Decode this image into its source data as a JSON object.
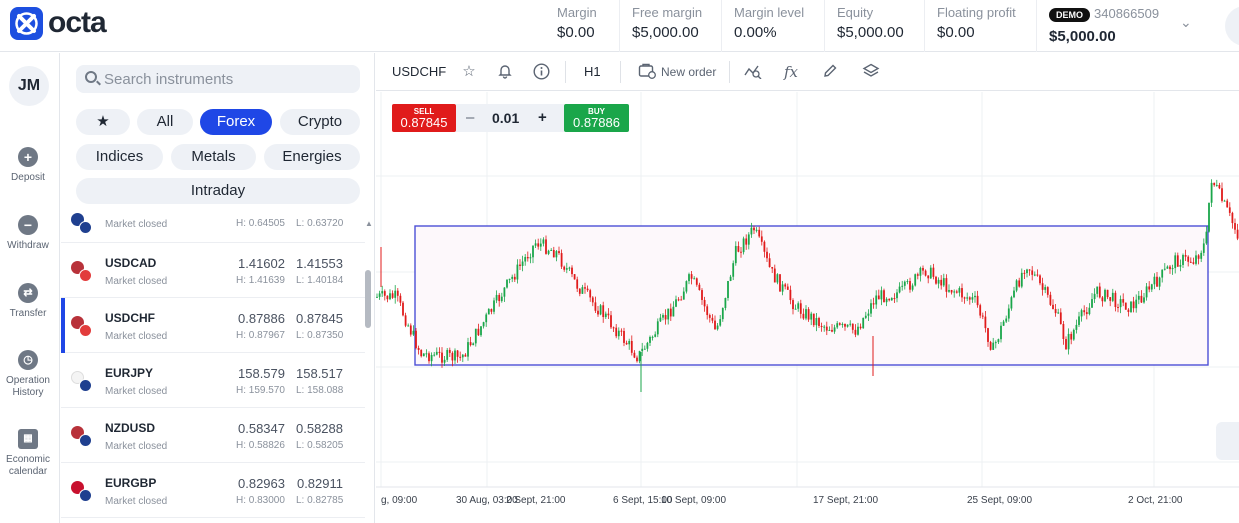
{
  "brand": {
    "name": "octa"
  },
  "header": {
    "stats": [
      {
        "label": "Margin",
        "value": "$0.00"
      },
      {
        "label": "Free margin",
        "value": "$5,000.00"
      },
      {
        "label": "Margin level",
        "value": "0.00%"
      },
      {
        "label": "Equity",
        "value": "$5,000.00"
      },
      {
        "label": "Floating profit",
        "value": "$0.00"
      }
    ],
    "account": {
      "badge": "DEMO",
      "id": "340866509",
      "balance": "$5,000.00"
    }
  },
  "nav": {
    "avatar": "JM",
    "items": [
      {
        "label": "Deposit",
        "icon": "plus-circle-icon"
      },
      {
        "label": "Withdraw",
        "icon": "minus-circle-icon"
      },
      {
        "label": "Transfer",
        "icon": "transfer-icon"
      },
      {
        "label": "Operation History",
        "icon": "clock-icon"
      },
      {
        "label": "Economic calendar",
        "icon": "calendar-icon"
      }
    ]
  },
  "instruments": {
    "search_placeholder": "Search instruments",
    "filters": [
      "All",
      "Forex",
      "Crypto",
      "Indices",
      "Metals",
      "Energies",
      "Intraday"
    ],
    "active_filter": "Forex",
    "rows": [
      {
        "symbol": "",
        "status": "Market closed",
        "bid": "",
        "ask": "",
        "high": "H: 0.64505",
        "low": "L: 0.63720",
        "flag1": "#1f3f8f",
        "flag2": "#1f3f8f"
      },
      {
        "symbol": "USDCAD",
        "status": "Market closed",
        "bid": "1.41602",
        "ask": "1.41553",
        "high": "H: 1.41639",
        "low": "L: 1.40184",
        "flag1": "#b8323a",
        "flag2": "#e23c3c"
      },
      {
        "symbol": "USDCHF",
        "status": "Market closed",
        "bid": "0.87886",
        "ask": "0.87845",
        "high": "H: 0.87967",
        "low": "L: 0.87350",
        "flag1": "#b8323a",
        "flag2": "#e23c3c"
      },
      {
        "symbol": "EURJPY",
        "status": "Market closed",
        "bid": "158.579",
        "ask": "158.517",
        "high": "H: 159.570",
        "low": "L: 158.088",
        "flag1": "#1f3f8f",
        "flag2": "#f4f4f4"
      },
      {
        "symbol": "NZDUSD",
        "status": "Market closed",
        "bid": "0.58347",
        "ask": "0.58288",
        "high": "H: 0.58826",
        "low": "L: 0.58205",
        "flag1": "#1f3f8f",
        "flag2": "#b8323a"
      },
      {
        "symbol": "EURGBP",
        "status": "Market closed",
        "bid": "0.82963",
        "ask": "0.82911",
        "high": "H: 0.83000",
        "low": "L: 0.82785",
        "flag1": "#1f3f8f",
        "flag2": "#c8102e"
      }
    ]
  },
  "chart": {
    "symbol": "USDCHF",
    "timeframe": "H1",
    "new_order": "New order",
    "sell": {
      "label": "SELL",
      "price": "0.87845"
    },
    "buy": {
      "label": "BUY",
      "price": "0.87886"
    },
    "volume": "0.01",
    "x_labels": [
      "g, 09:00",
      "30 Aug, 03:00",
      "2 Sept, 21:00",
      "6 Sept, 15:00",
      "10 Sept, 09:00",
      "17 Sept, 21:00",
      "25 Sept, 09:00",
      "2 Oct, 21:00"
    ],
    "colors": {
      "up": "#1aa64a",
      "down": "#e01b1b",
      "box": "#4c4fd6"
    }
  }
}
